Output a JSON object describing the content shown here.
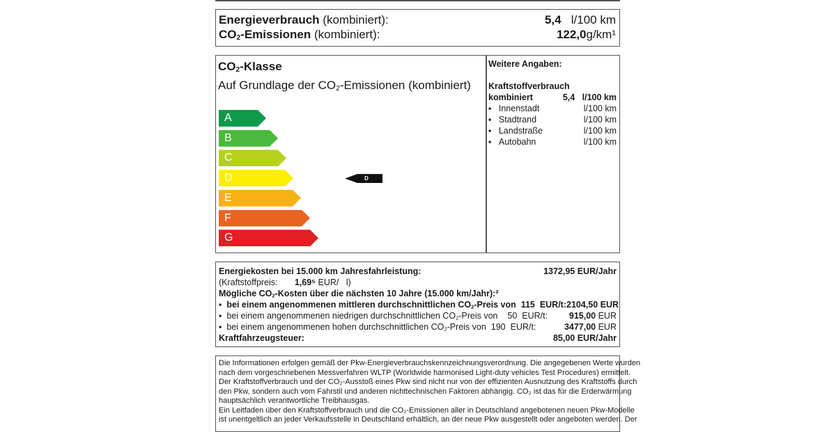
{
  "consumption": {
    "energy_label": "Energieverbrauch",
    "energy_suffix": " (kombiniert):",
    "energy_value": "5,4",
    "energy_unit": "l/100 km",
    "co2_label": "-Emissionen",
    "co2_suffix": " (kombiniert):",
    "co2_value": "122,0",
    "co2_unit": "g/km¹"
  },
  "co2_class": {
    "title": "-Klasse",
    "subtitle_pre": "Auf Grundlage der CO",
    "subtitle_post": "-Emissionen (kombiniert)",
    "classes": [
      {
        "label": "A",
        "color": "#0f9a4b"
      },
      {
        "label": "B",
        "color": "#4bb93b"
      },
      {
        "label": "C",
        "color": "#b5d11c"
      },
      {
        "label": "D",
        "color": "#fdee00"
      },
      {
        "label": "E",
        "color": "#f7b114"
      },
      {
        "label": "F",
        "color": "#ec6220"
      },
      {
        "label": "G",
        "color": "#e31e24"
      }
    ],
    "current": "D"
  },
  "details": {
    "title": "Weitere Angaben:",
    "fuel_heading": "Kraftstoffverbrauch",
    "combined_label": "kombiniert",
    "combined_value": "5,4",
    "combined_unit": "l/100 km",
    "items": [
      {
        "label": "Innenstadt",
        "unit": "l/100 km"
      },
      {
        "label": "Stadtrand",
        "unit": "l/100 km"
      },
      {
        "label": "Landstraße",
        "unit": "l/100 km"
      },
      {
        "label": "Autobahn",
        "unit": "l/100 km"
      }
    ]
  },
  "costs": {
    "energy_label": "Energiekosten bei 15.000 km Jahresfahrleistung:",
    "energy_value": "1372,95 EUR/Jahr",
    "fuel_price_label": "(Kraftstoffpreis:",
    "fuel_price_value": "1,69⁵",
    "fuel_price_unit": "EUR/   l)",
    "co2_heading_pre": "Mögliche CO",
    "co2_heading_post": "-Kosten über die nächsten 10 Jahre (15.000 km/Jahr):²",
    "scenarios": [
      {
        "pre": "bei einem angenommenen mittleren durchschnittlichen CO",
        "post": "-Preis von  115  EUR/t:",
        "value": "2104,50",
        "unit": " EUR"
      },
      {
        "pre": "bei einem angenommenen niedrigen durchschnittlichen CO",
        "post": "-Preis von    50  EUR/t:",
        "value": "915,00",
        "unit": " EUR"
      },
      {
        "pre": "bei einem angenommenen hohen durchschnittlichen CO",
        "post": "-Preis von  190  EUR/t:",
        "value": "3477,00",
        "unit": " EUR"
      }
    ],
    "tax_label": "Kraftfahrzeugsteuer:",
    "tax_value": "85,00 EUR/Jahr"
  },
  "footer": {
    "lines": [
      "Die Informationen erfolgen gemäß der Pkw-Energieverbrauchskennzeichnungsverordnung. Die angegebenen Werte wurden",
      "nach dem vorgeschriebenen Messverfahren WLTP (Worldwide harmonised Light-duty vehicles Test Procedures) ermittelt.",
      "Der Kraftstoffverbrauch und der CO₂-Ausstoß eines Pkw sind nicht nur von der effizienten Ausnutzung des Kraftstoffs durch",
      "den Pkw, sondern auch vom Fahrstil und anderen nichttechnischen Faktoren abhängig. CO₂ ist das für die Erderwärmung",
      "hauptsächlich verantwortliche Treibhausgas.",
      "Ein Leitfaden über den Kraftstoffverbrauch und die CO₂-Emissionen aller in Deutschland angebotenen neuen Pkw-Modelle",
      "ist unentgeltlich an jeder Verkaufsstelle in Deutschland erhältlich, an der neue Pkw ausgestellt oder angeboten werden. Der"
    ]
  }
}
